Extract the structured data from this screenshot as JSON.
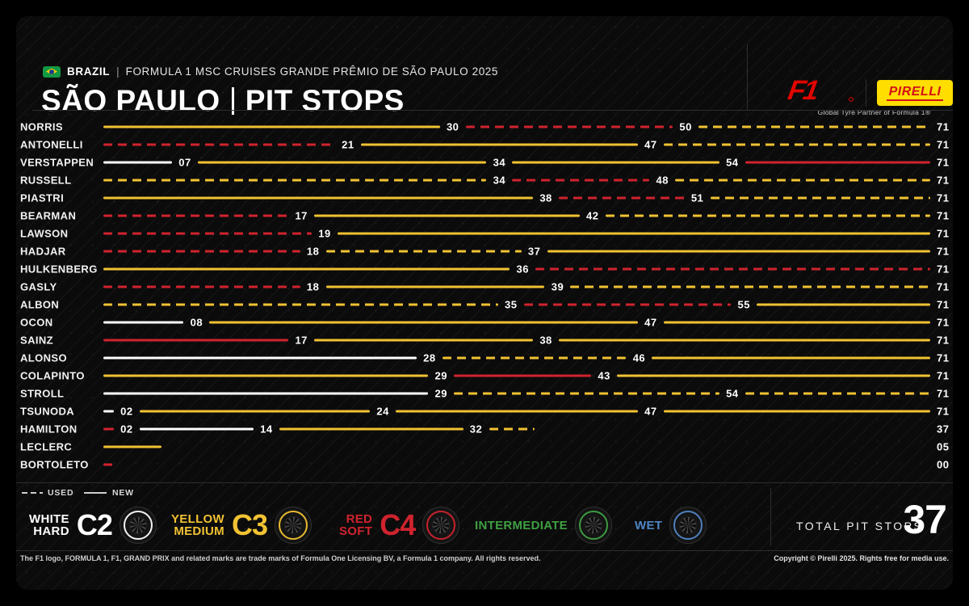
{
  "header": {
    "country": "BRAZIL",
    "separator": "|",
    "event_title": "FORMULA 1 MSC CRUISES GRANDE PRÊMIO DE SÃO PAULO 2025",
    "title_left": "SÃO PAULO",
    "title_right": "PIT STOPS",
    "f1_logo_text": "F1",
    "pirelli_logo_text": "PIRELLI",
    "partner_caption": "Global Tyre Partner of Formula 1®"
  },
  "colors": {
    "medium_yellow": "#F1C232",
    "soft_red": "#D0232E",
    "hard_white": "#FFFFFF",
    "intermediate_green": "#3FA042",
    "wet_blue": "#4F86C6",
    "f1_red": "#E10600",
    "pirelli_yellow": "#FFDE00",
    "pirelli_red": "#D41217"
  },
  "chart_data": {
    "type": "timeline",
    "title": "São Paulo pit stops by driver",
    "x_axis": "lap",
    "total_laps": 71,
    "legend_note": "dashed = used tyre, solid = new tyre",
    "drivers": [
      {
        "name": "NORRIS",
        "end_label": "71",
        "stints": [
          {
            "from": 0,
            "to": 30,
            "compound": "medium",
            "condition": "new"
          },
          {
            "from": 30,
            "to": 50,
            "compound": "soft",
            "condition": "used"
          },
          {
            "from": 50,
            "to": 71,
            "compound": "medium",
            "condition": "used"
          }
        ],
        "stops": [
          {
            "lap": 30,
            "label": "30"
          },
          {
            "lap": 50,
            "label": "50"
          }
        ]
      },
      {
        "name": "ANTONELLI",
        "end_label": "71",
        "stints": [
          {
            "from": 0,
            "to": 21,
            "compound": "soft",
            "condition": "used"
          },
          {
            "from": 21,
            "to": 47,
            "compound": "medium",
            "condition": "new"
          },
          {
            "from": 47,
            "to": 71,
            "compound": "medium",
            "condition": "used"
          }
        ],
        "stops": [
          {
            "lap": 21,
            "label": "21"
          },
          {
            "lap": 47,
            "label": "47"
          }
        ]
      },
      {
        "name": "VERSTAPPEN",
        "end_label": "71",
        "stints": [
          {
            "from": 0,
            "to": 7,
            "compound": "hard",
            "condition": "new"
          },
          {
            "from": 7,
            "to": 34,
            "compound": "medium",
            "condition": "new"
          },
          {
            "from": 34,
            "to": 54,
            "compound": "medium",
            "condition": "new"
          },
          {
            "from": 54,
            "to": 71,
            "compound": "soft",
            "condition": "new"
          }
        ],
        "stops": [
          {
            "lap": 7,
            "label": "07"
          },
          {
            "lap": 34,
            "label": "34"
          },
          {
            "lap": 54,
            "label": "54"
          }
        ]
      },
      {
        "name": "RUSSELL",
        "end_label": "71",
        "stints": [
          {
            "from": 0,
            "to": 34,
            "compound": "medium",
            "condition": "used"
          },
          {
            "from": 34,
            "to": 48,
            "compound": "soft",
            "condition": "used"
          },
          {
            "from": 48,
            "to": 71,
            "compound": "medium",
            "condition": "used"
          }
        ],
        "stops": [
          {
            "lap": 34,
            "label": "34"
          },
          {
            "lap": 48,
            "label": "48"
          }
        ]
      },
      {
        "name": "PIASTRI",
        "end_label": "71",
        "stints": [
          {
            "from": 0,
            "to": 38,
            "compound": "medium",
            "condition": "new"
          },
          {
            "from": 38,
            "to": 51,
            "compound": "soft",
            "condition": "used"
          },
          {
            "from": 51,
            "to": 71,
            "compound": "medium",
            "condition": "used"
          }
        ],
        "stops": [
          {
            "lap": 38,
            "label": "38"
          },
          {
            "lap": 51,
            "label": "51"
          }
        ]
      },
      {
        "name": "BEARMAN",
        "end_label": "71",
        "stints": [
          {
            "from": 0,
            "to": 17,
            "compound": "soft",
            "condition": "used"
          },
          {
            "from": 17,
            "to": 42,
            "compound": "medium",
            "condition": "new"
          },
          {
            "from": 42,
            "to": 71,
            "compound": "medium",
            "condition": "used"
          }
        ],
        "stops": [
          {
            "lap": 17,
            "label": "17"
          },
          {
            "lap": 42,
            "label": "42"
          }
        ]
      },
      {
        "name": "LAWSON",
        "end_label": "71",
        "stints": [
          {
            "from": 0,
            "to": 19,
            "compound": "soft",
            "condition": "used"
          },
          {
            "from": 19,
            "to": 71,
            "compound": "medium",
            "condition": "new"
          }
        ],
        "stops": [
          {
            "lap": 19,
            "label": "19"
          }
        ]
      },
      {
        "name": "HADJAR",
        "end_label": "71",
        "stints": [
          {
            "from": 0,
            "to": 18,
            "compound": "soft",
            "condition": "used"
          },
          {
            "from": 18,
            "to": 37,
            "compound": "medium",
            "condition": "used"
          },
          {
            "from": 37,
            "to": 71,
            "compound": "medium",
            "condition": "new"
          }
        ],
        "stops": [
          {
            "lap": 18,
            "label": "18"
          },
          {
            "lap": 37,
            "label": "37"
          }
        ]
      },
      {
        "name": "HULKENBERG",
        "end_label": "71",
        "stints": [
          {
            "from": 0,
            "to": 36,
            "compound": "medium",
            "condition": "new"
          },
          {
            "from": 36,
            "to": 71,
            "compound": "soft",
            "condition": "used"
          }
        ],
        "stops": [
          {
            "lap": 36,
            "label": "36"
          }
        ]
      },
      {
        "name": "GASLY",
        "end_label": "71",
        "stints": [
          {
            "from": 0,
            "to": 18,
            "compound": "soft",
            "condition": "used"
          },
          {
            "from": 18,
            "to": 39,
            "compound": "medium",
            "condition": "new"
          },
          {
            "from": 39,
            "to": 71,
            "compound": "medium",
            "condition": "used"
          }
        ],
        "stops": [
          {
            "lap": 18,
            "label": "18"
          },
          {
            "lap": 39,
            "label": "39"
          }
        ]
      },
      {
        "name": "ALBON",
        "end_label": "71",
        "stints": [
          {
            "from": 0,
            "to": 35,
            "compound": "medium",
            "condition": "used"
          },
          {
            "from": 35,
            "to": 55,
            "compound": "soft",
            "condition": "used"
          },
          {
            "from": 55,
            "to": 71,
            "compound": "medium",
            "condition": "new"
          }
        ],
        "stops": [
          {
            "lap": 35,
            "label": "35"
          },
          {
            "lap": 55,
            "label": "55"
          }
        ]
      },
      {
        "name": "OCON",
        "end_label": "71",
        "stints": [
          {
            "from": 0,
            "to": 8,
            "compound": "hard",
            "condition": "new"
          },
          {
            "from": 8,
            "to": 47,
            "compound": "medium",
            "condition": "new"
          },
          {
            "from": 47,
            "to": 71,
            "compound": "medium",
            "condition": "new"
          }
        ],
        "stops": [
          {
            "lap": 8,
            "label": "08"
          },
          {
            "lap": 47,
            "label": "47"
          }
        ]
      },
      {
        "name": "SAINZ",
        "end_label": "71",
        "stints": [
          {
            "from": 0,
            "to": 17,
            "compound": "soft",
            "condition": "new"
          },
          {
            "from": 17,
            "to": 38,
            "compound": "medium",
            "condition": "new"
          },
          {
            "from": 38,
            "to": 71,
            "compound": "medium",
            "condition": "new"
          }
        ],
        "stops": [
          {
            "lap": 17,
            "label": "17"
          },
          {
            "lap": 38,
            "label": "38"
          }
        ]
      },
      {
        "name": "ALONSO",
        "end_label": "71",
        "stints": [
          {
            "from": 0,
            "to": 28,
            "compound": "hard",
            "condition": "new"
          },
          {
            "from": 28,
            "to": 46,
            "compound": "medium",
            "condition": "used"
          },
          {
            "from": 46,
            "to": 71,
            "compound": "medium",
            "condition": "new"
          }
        ],
        "stops": [
          {
            "lap": 28,
            "label": "28"
          },
          {
            "lap": 46,
            "label": "46"
          }
        ]
      },
      {
        "name": "COLAPINTO",
        "end_label": "71",
        "stints": [
          {
            "from": 0,
            "to": 29,
            "compound": "medium",
            "condition": "new"
          },
          {
            "from": 29,
            "to": 43,
            "compound": "soft",
            "condition": "new"
          },
          {
            "from": 43,
            "to": 71,
            "compound": "medium",
            "condition": "new"
          }
        ],
        "stops": [
          {
            "lap": 29,
            "label": "29"
          },
          {
            "lap": 43,
            "label": "43"
          }
        ]
      },
      {
        "name": "STROLL",
        "end_label": "71",
        "stints": [
          {
            "from": 0,
            "to": 29,
            "compound": "hard",
            "condition": "new"
          },
          {
            "from": 29,
            "to": 54,
            "compound": "medium",
            "condition": "used"
          },
          {
            "from": 54,
            "to": 71,
            "compound": "medium",
            "condition": "used"
          }
        ],
        "stops": [
          {
            "lap": 29,
            "label": "29"
          },
          {
            "lap": 54,
            "label": "54"
          }
        ]
      },
      {
        "name": "TSUNODA",
        "end_label": "71",
        "stints": [
          {
            "from": 0,
            "to": 2,
            "compound": "hard",
            "condition": "new"
          },
          {
            "from": 2,
            "to": 24,
            "compound": "medium",
            "condition": "new"
          },
          {
            "from": 24,
            "to": 47,
            "compound": "medium",
            "condition": "new"
          },
          {
            "from": 47,
            "to": 71,
            "compound": "medium",
            "condition": "new"
          }
        ],
        "stops": [
          {
            "lap": 2,
            "label": "02"
          },
          {
            "lap": 24,
            "label": "24"
          },
          {
            "lap": 47,
            "label": "47"
          }
        ]
      },
      {
        "name": "HAMILTON",
        "end_label": "37",
        "stints": [
          {
            "from": 0,
            "to": 2,
            "compound": "soft",
            "condition": "new"
          },
          {
            "from": 2,
            "to": 14,
            "compound": "hard",
            "condition": "new"
          },
          {
            "from": 14,
            "to": 32,
            "compound": "medium",
            "condition": "new"
          },
          {
            "from": 32,
            "to": 37,
            "compound": "medium",
            "condition": "used"
          }
        ],
        "stops": [
          {
            "lap": 2,
            "label": "02"
          },
          {
            "lap": 14,
            "label": "14"
          },
          {
            "lap": 32,
            "label": "32"
          }
        ]
      },
      {
        "name": "LECLERC",
        "end_label": "05",
        "stints": [
          {
            "from": 0,
            "to": 5,
            "compound": "medium",
            "condition": "new"
          }
        ],
        "stops": []
      },
      {
        "name": "BORTOLETO",
        "end_label": "00",
        "stints": [
          {
            "from": 0,
            "to": 1,
            "compound": "soft",
            "condition": "used"
          }
        ],
        "stops": []
      }
    ]
  },
  "legend": {
    "used_label": "USED",
    "new_label": "NEW",
    "compounds": [
      {
        "lines": [
          "WHITE",
          "HARD"
        ],
        "code": "C2",
        "color": "#FFFFFF"
      },
      {
        "lines": [
          "YELLOW",
          "MEDIUM"
        ],
        "code": "C3",
        "color": "#F1C232"
      },
      {
        "lines": [
          "RED",
          "SOFT"
        ],
        "code": "C4",
        "color": "#D0232E"
      },
      {
        "lines": [
          "INTERMEDIATE"
        ],
        "code": "",
        "color": "#3FA042"
      },
      {
        "lines": [
          "WET"
        ],
        "code": "",
        "color": "#4F86C6"
      }
    ]
  },
  "summary": {
    "total_label": "TOTAL PIT STOPS",
    "total_value": "37"
  },
  "footer": {
    "left": "The F1 logo, FORMULA 1, F1, GRAND PRIX and related marks are trade marks of Formula One Licensing BV, a Formula 1 company. All rights reserved.",
    "right": "Copyright © Pirelli 2025. Rights free for media use."
  }
}
